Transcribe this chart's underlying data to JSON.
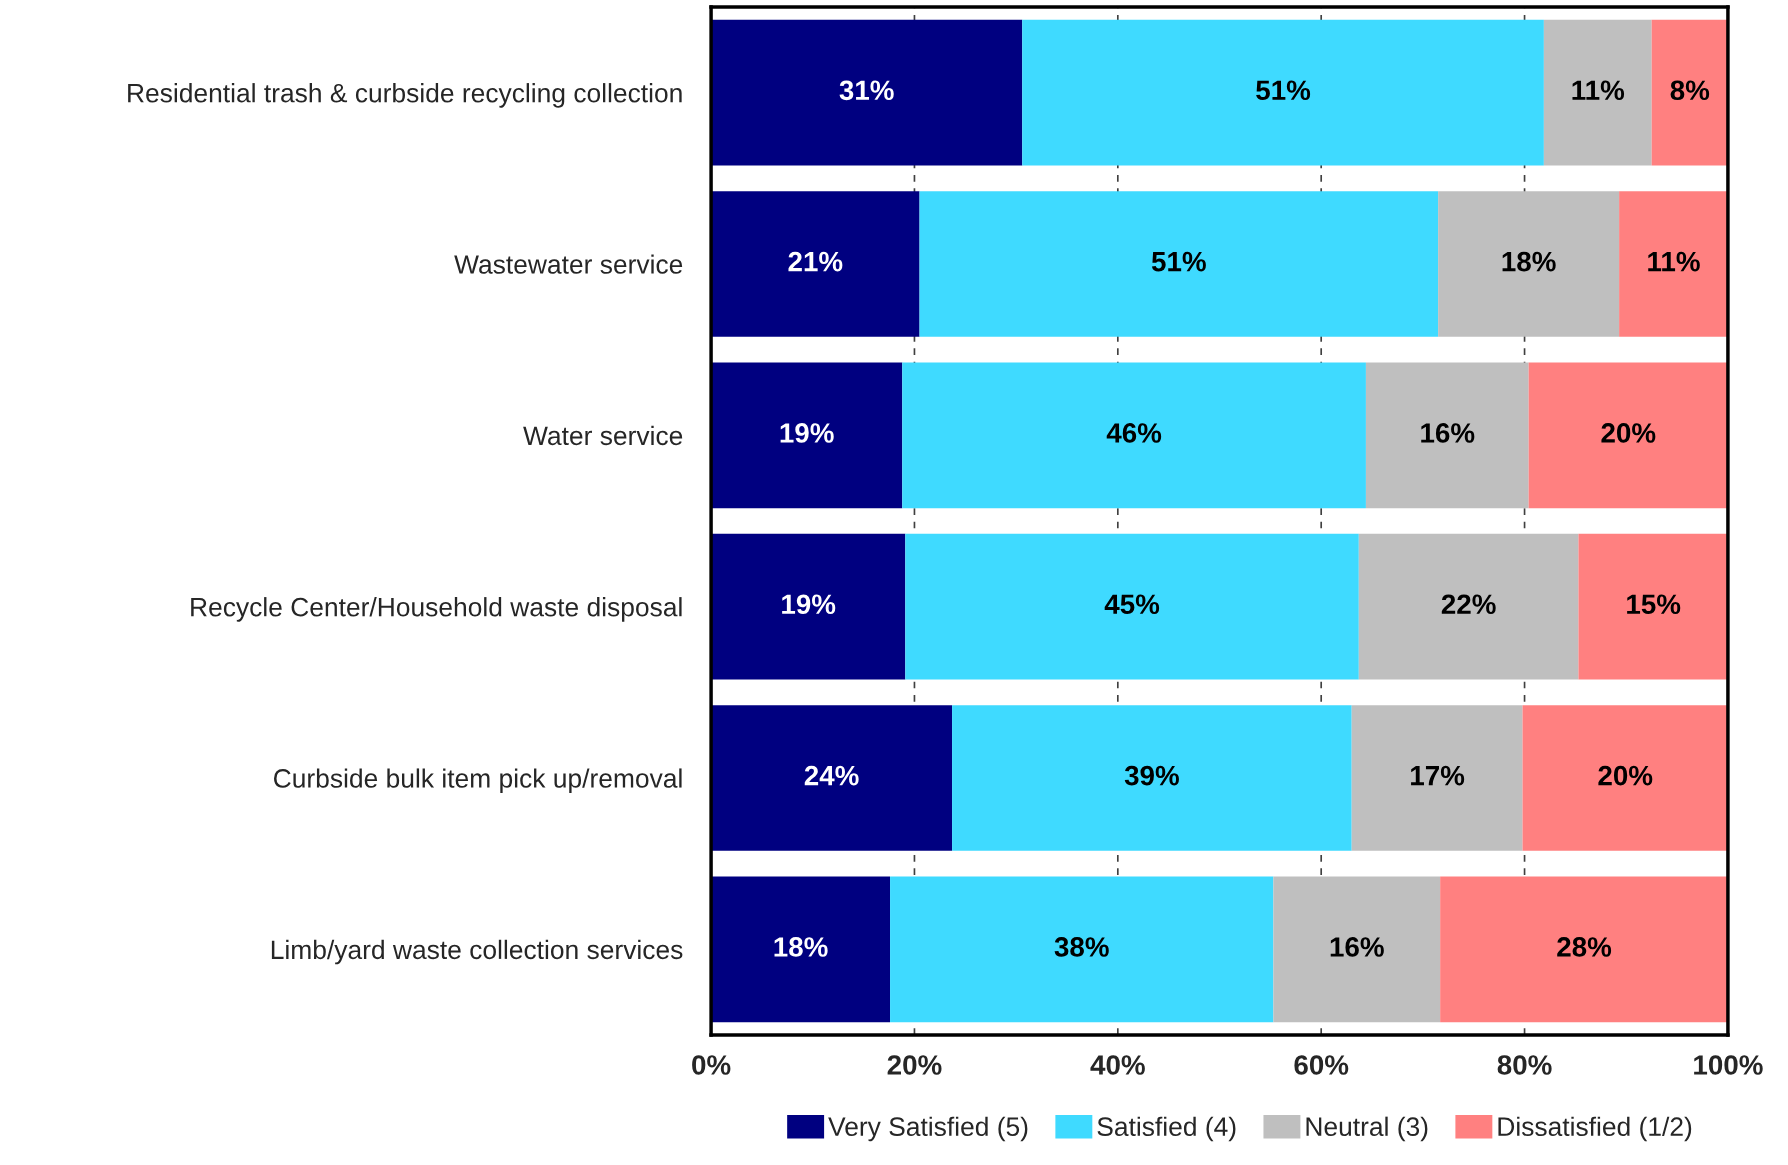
{
  "chart_data": {
    "type": "bar",
    "orientation": "horizontal",
    "stacked": true,
    "categories": [
      "Residential trash & curbside recycling collection",
      "Wastewater service",
      "Water service",
      "Recycle Center/Household waste disposal",
      "Curbside bulk item pick up/removal",
      "Limb/yard waste collection services"
    ],
    "series": [
      {
        "name": "Very Satisfied (5)",
        "color": "#000080",
        "values": [
          30.6,
          20.5,
          18.8,
          19.1,
          23.7,
          17.6
        ],
        "value_labels": [
          "31%",
          "21%",
          "19%",
          "19%",
          "24%",
          "18%"
        ]
      },
      {
        "name": "Satisfied (4)",
        "color": "#3fdaff",
        "values": [
          51.3,
          51.0,
          45.6,
          44.6,
          39.3,
          37.7
        ],
        "value_labels": [
          "51%",
          "51%",
          "46%",
          "45%",
          "39%",
          "38%"
        ]
      },
      {
        "name": "Neutral (3)",
        "color": "#bfbfbf",
        "values": [
          10.6,
          17.8,
          16.0,
          21.6,
          16.8,
          16.4
        ],
        "value_labels": [
          "11%",
          "18%",
          "16%",
          "22%",
          "17%",
          "16%"
        ]
      },
      {
        "name": "Dissatisfied (1/2)",
        "color": "#ff8080",
        "values": [
          7.5,
          10.7,
          19.6,
          14.7,
          20.2,
          28.3
        ],
        "value_labels": [
          "8%",
          "11%",
          "20%",
          "15%",
          "20%",
          "28%"
        ]
      }
    ],
    "xlim": [
      0,
      100
    ],
    "xticks": [
      {
        "value": 0,
        "label": "0%"
      },
      {
        "value": 20,
        "label": "20%"
      },
      {
        "value": 40,
        "label": "40%"
      },
      {
        "value": 60,
        "label": "60%"
      },
      {
        "value": 80,
        "label": "80%"
      },
      {
        "value": 100,
        "label": "100%"
      }
    ],
    "grid": "x",
    "legend": "bottom"
  }
}
